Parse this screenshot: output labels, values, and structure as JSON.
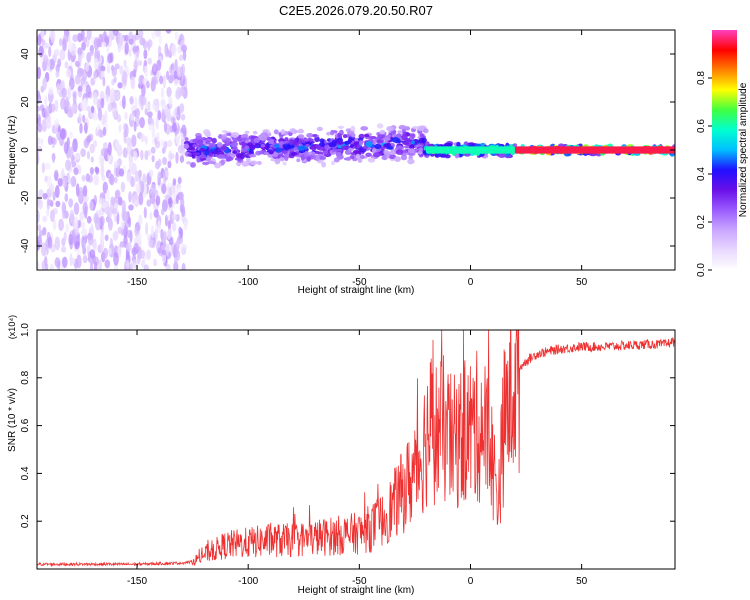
{
  "title": "C2E5.2026.079.20.50.R07",
  "colors": {
    "snr_line": "#ee3030",
    "spectral_cmap": [
      "#ffffff",
      "#e8d8ff",
      "#c9a6ff",
      "#9b5cff",
      "#6a10e8",
      "#2010ff",
      "#00bfff",
      "#00ffd0",
      "#40ff40",
      "#ffff00",
      "#ff8000",
      "#ff0000",
      "#ff40c0"
    ]
  },
  "chart_data": [
    {
      "type": "heatmap",
      "title": "C2E5.2026.079.20.50.R07",
      "xlabel": "Height of straight line (km)",
      "ylabel": "Frequency (Hz)",
      "xlim": [
        -195,
        92
      ],
      "ylim": [
        -50,
        50
      ],
      "xticks": [
        -150,
        -100,
        -50,
        0,
        50
      ],
      "xtick_labels": [
        "-150",
        "-100",
        "-50",
        "0",
        "50"
      ],
      "yticks": [
        -40,
        -20,
        0,
        20,
        40
      ],
      "ytick_labels": [
        "-40",
        "-20",
        "0",
        "20",
        "40"
      ],
      "colorbar": {
        "label": "Normalized spectral amplitude",
        "range": [
          0,
          1
        ],
        "ticks": [
          0.0,
          0.2,
          0.4,
          0.6,
          0.8
        ],
        "tick_labels": [
          "0.0",
          "0.2",
          "0.4",
          "0.6",
          "0.8"
        ]
      },
      "regions": [
        {
          "x_range": [
            -195,
            -128
          ],
          "freq_halfwidth": 50,
          "amplitude": 0.12,
          "pattern": "scattered noise"
        },
        {
          "x_range": [
            -128,
            -20
          ],
          "freq_halfwidth": 8,
          "amplitude": 0.3,
          "pattern": "broadened signal"
        },
        {
          "x_range": [
            -20,
            20
          ],
          "freq_halfwidth": 3,
          "amplitude": 0.55,
          "pattern": "narrow signal"
        },
        {
          "x_range": [
            20,
            92
          ],
          "freq_halfwidth": 2,
          "amplitude": 0.85,
          "pattern": "strong narrow signal"
        }
      ]
    },
    {
      "type": "line",
      "xlabel": "Height of straight line (km)",
      "ylabel": "SNR (10 * v/v)",
      "y_multiplier": "(x10⁴)",
      "xlim": [
        -195,
        92
      ],
      "ylim": [
        0,
        1.0
      ],
      "xticks": [
        -150,
        -100,
        -50,
        0,
        50
      ],
      "xtick_labels": [
        "-150",
        "-100",
        "-50",
        "0",
        "50"
      ],
      "yticks": [
        0.2,
        0.4,
        0.6,
        0.8,
        1.0
      ],
      "ytick_labels": [
        "0.2",
        "0.4",
        "0.6",
        "0.8",
        "1.0"
      ],
      "series": [
        {
          "name": "SNR",
          "x": [
            -195,
            -150,
            -130,
            -125,
            -120,
            -115,
            -110,
            -100,
            -90,
            -80,
            -70,
            -60,
            -50,
            -45,
            -40,
            -35,
            -30,
            -25,
            -22,
            -20,
            -18,
            -15,
            -12,
            -10,
            -8,
            -5,
            0,
            5,
            8,
            10,
            12,
            13,
            15,
            18,
            20,
            25,
            30,
            40,
            50,
            60,
            70,
            80,
            88,
            90,
            92
          ],
          "y": [
            0.02,
            0.02,
            0.025,
            0.03,
            0.06,
            0.08,
            0.1,
            0.11,
            0.12,
            0.12,
            0.13,
            0.14,
            0.15,
            0.17,
            0.2,
            0.26,
            0.33,
            0.4,
            0.48,
            0.55,
            0.6,
            0.57,
            0.58,
            0.55,
            0.52,
            0.55,
            0.58,
            0.6,
            0.55,
            0.45,
            0.3,
            0.35,
            0.6,
            0.74,
            0.82,
            0.87,
            0.9,
            0.92,
            0.93,
            0.93,
            0.935,
            0.94,
            0.94,
            0.95,
            0.95
          ]
        }
      ]
    }
  ]
}
